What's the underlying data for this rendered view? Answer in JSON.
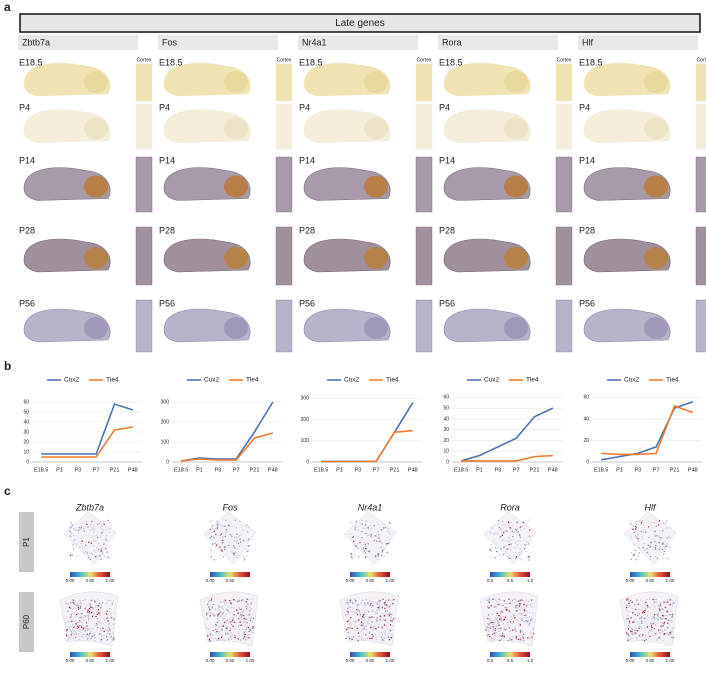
{
  "panel_a": {
    "label": "a",
    "title": "Late genes",
    "columns": [
      {
        "gene": "Zbtb7a",
        "inset_label": "Cortex",
        "ages": [
          "E18.5",
          "P4",
          "P14",
          "P28",
          "P56"
        ]
      },
      {
        "gene": "Fos",
        "inset_label": "Cortex",
        "ages": [
          "E18.5",
          "P4",
          "P14",
          "P28",
          "P56"
        ]
      },
      {
        "gene": "Nr4a1",
        "inset_label": "Cortex",
        "ages": [
          "E18.5",
          "P4",
          "P14",
          "P28",
          "P56"
        ]
      },
      {
        "gene": "Rora",
        "inset_label": "Cortex",
        "ages": [
          "E18.5",
          "P4",
          "P14",
          "P28",
          "P56"
        ]
      },
      {
        "gene": "Hlf",
        "inset_label": "Cortex",
        "ages": [
          "E18.5",
          "P4",
          "P14",
          "P28",
          "P56"
        ]
      }
    ]
  },
  "panel_b": {
    "label": "b"
  },
  "chart_data": [
    {
      "type": "line",
      "categories": [
        "E18.5",
        "P1",
        "P3",
        "P7",
        "P21",
        "P48"
      ],
      "series": [
        {
          "name": "Cux2",
          "color": "#4a74b4",
          "values": [
            8,
            8,
            8,
            8,
            58,
            52
          ]
        },
        {
          "name": "Tle4",
          "color": "#ed7d31",
          "values": [
            5,
            5,
            5,
            5,
            32,
            35
          ]
        }
      ],
      "ylim": [
        0,
        70
      ],
      "yticks": [
        0,
        10,
        20,
        30,
        40,
        50,
        60
      ],
      "grid": true,
      "legend": "top"
    },
    {
      "type": "line",
      "categories": [
        "E18.5",
        "P1",
        "P3",
        "P7",
        "P21",
        "P48"
      ],
      "series": [
        {
          "name": "Cux2",
          "color": "#4a74b4",
          "values": [
            5,
            20,
            15,
            15,
            150,
            300
          ]
        },
        {
          "name": "Tle4",
          "color": "#ed7d31",
          "values": [
            5,
            15,
            10,
            10,
            120,
            145
          ]
        }
      ],
      "ylim": [
        0,
        350
      ],
      "yticks": [
        0,
        100,
        200,
        300
      ],
      "grid": true,
      "legend": "top"
    },
    {
      "type": "line",
      "categories": [
        "E18.5",
        "P1",
        "P3",
        "P7",
        "P21",
        "P48"
      ],
      "series": [
        {
          "name": "Cux2",
          "color": "#4a74b4",
          "values": [
            2,
            3,
            3,
            3,
            140,
            280
          ]
        },
        {
          "name": "Tle4",
          "color": "#ed7d31",
          "values": [
            2,
            3,
            3,
            3,
            140,
            148
          ]
        }
      ],
      "ylim": [
        0,
        330
      ],
      "yticks": [
        0,
        100,
        200,
        300
      ],
      "grid": true,
      "legend": "top"
    },
    {
      "type": "line",
      "categories": [
        "E18.5",
        "P1",
        "P3",
        "P7",
        "P21",
        "P48"
      ],
      "series": [
        {
          "name": "Cux2",
          "color": "#4a74b4",
          "values": [
            1,
            6,
            14,
            22,
            42,
            50
          ]
        },
        {
          "name": "Tle4",
          "color": "#ed7d31",
          "values": [
            1,
            1,
            1,
            1,
            5,
            6
          ]
        }
      ],
      "ylim": [
        0,
        65
      ],
      "yticks": [
        0,
        10,
        20,
        30,
        40,
        50,
        60
      ],
      "grid": true,
      "legend": "top"
    },
    {
      "type": "line",
      "categories": [
        "E18.5",
        "P1",
        "P3",
        "P7",
        "P21",
        "P48"
      ],
      "series": [
        {
          "name": "Cux2",
          "color": "#4a74b4",
          "values": [
            2,
            5,
            8,
            14,
            50,
            56
          ]
        },
        {
          "name": "Tle4",
          "color": "#ed7d31",
          "values": [
            8,
            7,
            7,
            8,
            52,
            46
          ]
        }
      ],
      "ylim": [
        0,
        65
      ],
      "yticks": [
        0,
        20,
        40,
        60
      ],
      "grid": true,
      "legend": "top"
    }
  ],
  "panel_c": {
    "label": "c",
    "genes": [
      "Zbtb7a",
      "Fos",
      "Nr4a1",
      "Rora",
      "Hlf"
    ],
    "rows": [
      {
        "label": "P1",
        "colorbar_ticks": [
          [
            "0.00",
            "0.50",
            "1.00"
          ],
          [
            "0.00",
            "0.50"
          ],
          [
            "0.00",
            "0.50",
            "1.00"
          ],
          [
            "0.0",
            "0.5",
            "1.0"
          ],
          [
            "0.00",
            "0.50",
            "1.00"
          ]
        ]
      },
      {
        "label": "P60",
        "colorbar_ticks": [
          [
            "0.00",
            "0.50",
            "1.00"
          ],
          [
            "0.00",
            "0.50",
            "1.00"
          ],
          [
            "0.00",
            "0.50",
            "1.00"
          ],
          [
            "0.0",
            "0.5",
            "1.0"
          ],
          [
            "0.00",
            "0.50",
            "1.00"
          ]
        ]
      }
    ]
  }
}
